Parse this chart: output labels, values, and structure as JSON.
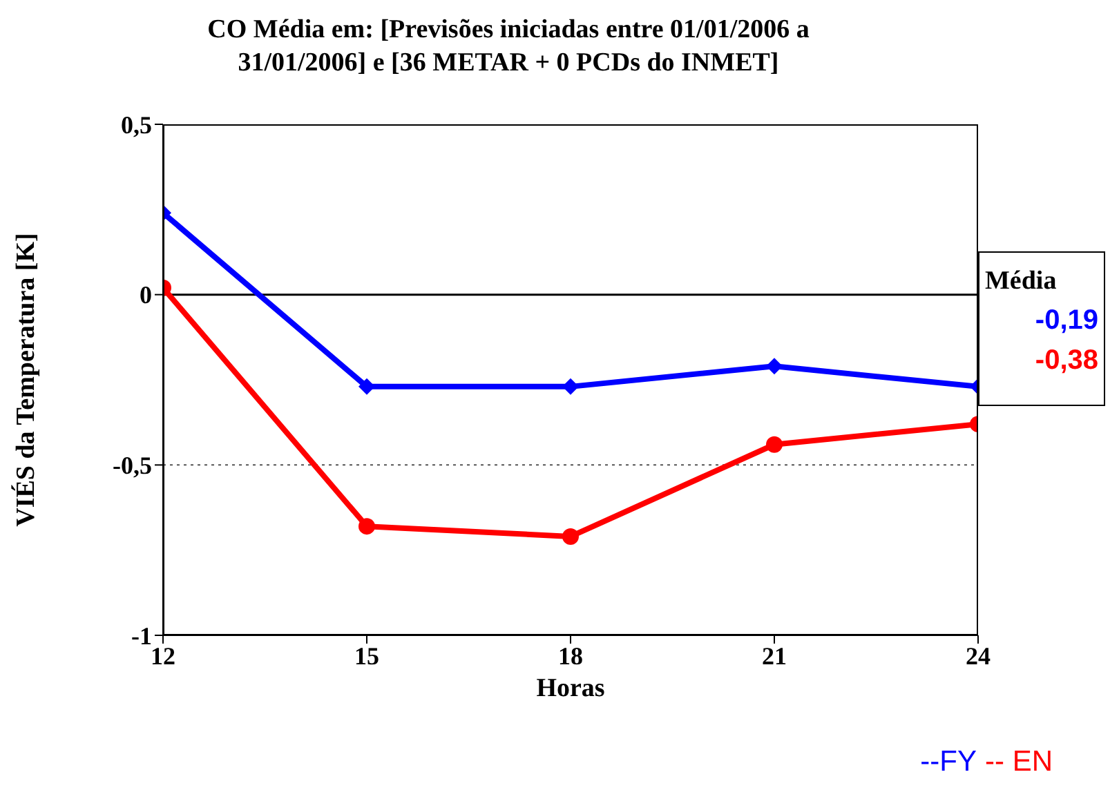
{
  "chart_data": {
    "type": "line",
    "title": "CO Média em: [Previsões iniciadas entre 01/01/2006 a 31/01/2006] e [36 METAR + 0 PCDs do INMET]",
    "xlabel": "Horas",
    "ylabel": "VIÉS da Temperatura [K]",
    "x": [
      12,
      15,
      18,
      21,
      24
    ],
    "series": [
      {
        "name": "--FY",
        "color": "#0000ff",
        "marker": "diamond",
        "values": [
          0.24,
          -0.27,
          -0.27,
          -0.21,
          -0.27
        ]
      },
      {
        "name": "-- EN",
        "color": "#ff0000",
        "marker": "circle",
        "values": [
          0.02,
          -0.68,
          -0.71,
          -0.44,
          -0.38
        ]
      }
    ],
    "xlim": [
      12,
      24
    ],
    "xticks": [
      12,
      15,
      18,
      21,
      24
    ],
    "ylim": [
      -1,
      0.5
    ],
    "yticks": [
      {
        "value": -1,
        "label": "-1"
      },
      {
        "value": -0.5,
        "label": "-0,5"
      },
      {
        "value": 0,
        "label": "0"
      },
      {
        "value": 0.5,
        "label": "0,5"
      }
    ],
    "ref_lines": [
      {
        "axis": "y",
        "value": 0,
        "color": "#000000",
        "line_style": "solid"
      },
      {
        "axis": "y",
        "value": -0.5,
        "color": "#555555",
        "line_style": "dotted"
      }
    ],
    "annotations": [
      "Média",
      "-0,19",
      "-0,38"
    ],
    "legend": "bottom right"
  }
}
